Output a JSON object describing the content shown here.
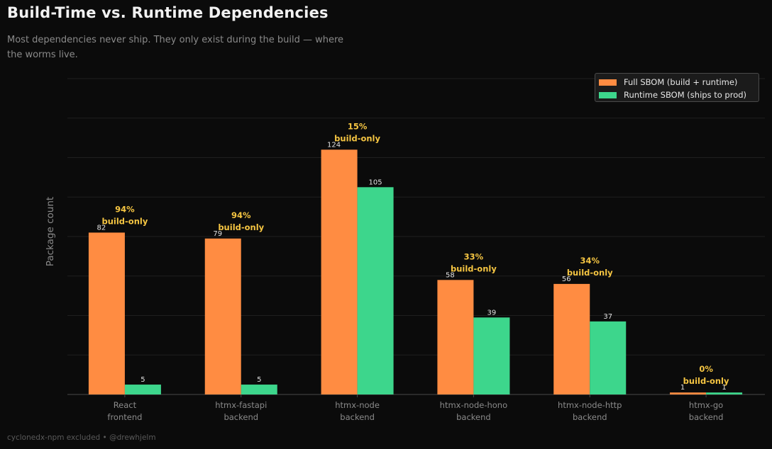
{
  "title": "Build-Time vs. Runtime Dependencies",
  "subtitle": "Most dependencies never ship. They only exist during the build — where the worms live.",
  "footer": "cyclonedx-npm excluded  •  @drewhjelm",
  "colors": {
    "background": "#0b0b0b",
    "full": "#ff8c42",
    "runtime": "#3dd68c",
    "annotation": "#f5c542",
    "axis_text": "#8a8a8a",
    "grid": "#1f1f1f"
  },
  "chart_data": {
    "type": "bar",
    "ylabel": "Package count",
    "xlabel": "",
    "ylim": [
      0,
      160
    ],
    "grid": true,
    "legend_position": "top-right",
    "categories": [
      "React\nfrontend",
      "htmx-fastapi\nbackend",
      "htmx-node\nbackend",
      "htmx-node-hono\nbackend",
      "htmx-node-http\nbackend",
      "htmx-go\nbackend"
    ],
    "series": [
      {
        "name": "Full SBOM (build + runtime)",
        "values": [
          82,
          79,
          124,
          58,
          56,
          1
        ]
      },
      {
        "name": "Runtime SBOM (ships to prod)",
        "values": [
          5,
          5,
          105,
          39,
          37,
          1
        ]
      }
    ],
    "annotations": [
      "94%\nbuild-only",
      "94%\nbuild-only",
      "15%\nbuild-only",
      "33%\nbuild-only",
      "34%\nbuild-only",
      "0%\nbuild-only"
    ]
  }
}
